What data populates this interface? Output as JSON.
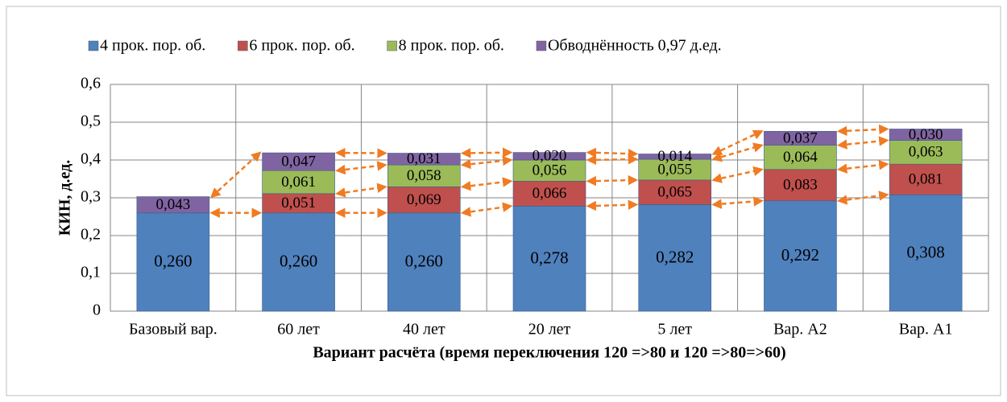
{
  "chart_data": {
    "type": "stacked_bar",
    "categories": [
      "Базовый вар.",
      "60 лет",
      "40 лет",
      "20 лет",
      "5 лет",
      "Вар. А2",
      "Вар. А1"
    ],
    "series": [
      {
        "name": "4 прок. пор. об.",
        "color": "#4f81bd",
        "values": [
          0.26,
          0.26,
          0.26,
          0.278,
          0.282,
          0.292,
          0.308
        ],
        "value_labels": [
          "0,260",
          "0,260",
          "0,260",
          "0,278",
          "0,282",
          "0,292",
          "0,308"
        ]
      },
      {
        "name": "6 прок. пор. об.",
        "color": "#c0504d",
        "values": [
          null,
          0.051,
          0.069,
          0.066,
          0.065,
          0.083,
          0.081
        ],
        "value_labels": [
          null,
          "0,051",
          "0,069",
          "0,066",
          "0,065",
          "0,083",
          "0,081"
        ]
      },
      {
        "name": "8 прок. пор. об.",
        "color": "#9bbb59",
        "values": [
          null,
          0.061,
          0.058,
          0.056,
          0.055,
          0.064,
          0.063
        ],
        "value_labels": [
          null,
          "0,061",
          "0,058",
          "0,056",
          "0,055",
          "0,064",
          "0,063"
        ]
      },
      {
        "name": "Обводнённость 0,97 д.ед.",
        "color": "#8064a2",
        "values": [
          0.043,
          0.047,
          0.031,
          0.02,
          0.014,
          0.037,
          0.03
        ],
        "value_labels": [
          "0,043",
          "0,047",
          "0,031",
          "0,020",
          "0,014",
          "0,037",
          "0,030"
        ]
      }
    ],
    "ylabel": "КИН, д.ед.",
    "xlabel": "Вариант расчёта (время переключения 120 =>80 и 120 =>80=>60)",
    "ylim": [
      0,
      0.6
    ],
    "yticks": [
      0,
      {
        "value": 0.1,
        "label": "0,1"
      },
      {
        "value": 0.2,
        "label": "0,2"
      },
      {
        "value": 0.3,
        "label": "0,3"
      },
      {
        "value": 0.4,
        "label": "0,4"
      },
      {
        "value": 0.5,
        "label": "0,5"
      },
      {
        "value": 0.6,
        "label": "0,6"
      }
    ],
    "grid": true,
    "legend": "top"
  }
}
